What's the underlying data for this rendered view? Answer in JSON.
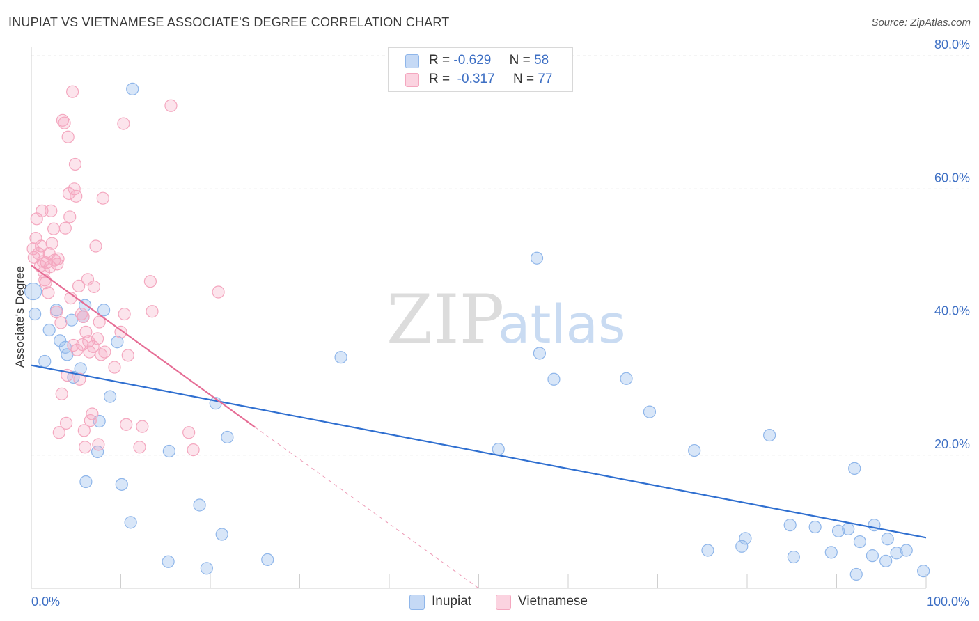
{
  "header": {
    "title": "INUPIAT VS VIETNAMESE ASSOCIATE'S DEGREE CORRELATION CHART",
    "source": "Source: ZipAtlas.com"
  },
  "watermark": {
    "zip": "ZIP",
    "atlas": "atlas"
  },
  "legend": {
    "rows": [
      {
        "r_label": "R =",
        "r_value": "-0.629",
        "n_label": "N =",
        "n_value": "58",
        "color": "#8fb6ea"
      },
      {
        "r_label": "R =",
        "r_value": "-0.317",
        "n_label": "N =",
        "n_value": "77",
        "color": "#f4a7bf"
      }
    ]
  },
  "bottom_legend": [
    {
      "label": "Inupiat",
      "color": "#8fb6ea"
    },
    {
      "label": "Vietnamese",
      "color": "#f4a7bf"
    }
  ],
  "chart_data": {
    "type": "scatter",
    "title": "INUPIAT VS VIETNAMESE ASSOCIATE'S DEGREE CORRELATION CHART",
    "ylabel": "Associate's Degree",
    "xlabel": "",
    "xlim": [
      0,
      100
    ],
    "ylim": [
      0,
      80
    ],
    "x_tick_labels": [
      "0.0%",
      "100.0%"
    ],
    "y_ticks": [
      20,
      40,
      60,
      80
    ],
    "y_tick_labels": [
      "20.0%",
      "40.0%",
      "60.0%",
      "80.0%"
    ],
    "grid": true,
    "legend_position": "top-center",
    "series": [
      {
        "name": "Inupiat",
        "color": "#8fb6ea",
        "line_color": "#2f6fd0",
        "trend": {
          "x": [
            0,
            100
          ],
          "y": [
            33.5,
            7.6
          ]
        },
        "points": [
          [
            0.4,
            41.2
          ],
          [
            1.5,
            34.1
          ],
          [
            2,
            38.8
          ],
          [
            2.8,
            41.8
          ],
          [
            3.2,
            37.2
          ],
          [
            3.8,
            36.2
          ],
          [
            4,
            35.1
          ],
          [
            4.5,
            40.3
          ],
          [
            4.7,
            31.7
          ],
          [
            5.5,
            33
          ],
          [
            5.8,
            40.8
          ],
          [
            6.1,
            16
          ],
          [
            6,
            42.5
          ],
          [
            7.4,
            20.5
          ],
          [
            7.6,
            25.1
          ],
          [
            8.1,
            41.8
          ],
          [
            8.8,
            28.8
          ],
          [
            9.6,
            37
          ],
          [
            10.1,
            15.6
          ],
          [
            11.1,
            9.9
          ],
          [
            11.3,
            75
          ],
          [
            15.3,
            4
          ],
          [
            15.4,
            20.6
          ],
          [
            18.8,
            12.5
          ],
          [
            19.6,
            3
          ],
          [
            20.6,
            27.8
          ],
          [
            21.3,
            8.1
          ],
          [
            21.9,
            22.7
          ],
          [
            26.4,
            4.3
          ],
          [
            34.6,
            34.7
          ],
          [
            52.2,
            20.9
          ],
          [
            56.5,
            49.6
          ],
          [
            56.8,
            35.3
          ],
          [
            58.4,
            31.4
          ],
          [
            66.5,
            31.5
          ],
          [
            69.1,
            26.5
          ],
          [
            74.1,
            20.7
          ],
          [
            75.6,
            5.7
          ],
          [
            79.4,
            6.3
          ],
          [
            79.8,
            7.5
          ],
          [
            82.5,
            23
          ],
          [
            84.8,
            9.5
          ],
          [
            85.2,
            4.7
          ],
          [
            87.6,
            9.2
          ],
          [
            89.4,
            5.4
          ],
          [
            90.2,
            8.6
          ],
          [
            91.3,
            8.9
          ],
          [
            92,
            18
          ],
          [
            92.2,
            2.1
          ],
          [
            92.6,
            7
          ],
          [
            94,
            4.9
          ],
          [
            94.2,
            9.5
          ],
          [
            95.5,
            4.1
          ],
          [
            95.7,
            7.4
          ],
          [
            96.7,
            5.3
          ],
          [
            97.8,
            5.7
          ],
          [
            99.7,
            2.6
          ],
          [
            0.2,
            44.6
          ]
        ]
      },
      {
        "name": "Vietnamese",
        "color": "#f4a7bf",
        "line_color": "#e66d95",
        "trend": {
          "x": [
            0,
            25
          ],
          "y": [
            48.5,
            24.2
          ]
        },
        "trend_extension": {
          "x": [
            25,
            50
          ],
          "y": [
            24.2,
            0
          ]
        },
        "points": [
          [
            0.2,
            51
          ],
          [
            0.3,
            49.7
          ],
          [
            0.5,
            52.6
          ],
          [
            0.6,
            55.5
          ],
          [
            0.8,
            50.3
          ],
          [
            1,
            48.4
          ],
          [
            1.1,
            51.4
          ],
          [
            1.2,
            56.7
          ],
          [
            1.3,
            49.1
          ],
          [
            1.5,
            46.3
          ],
          [
            1.6,
            45.9
          ],
          [
            1.7,
            48.9
          ],
          [
            1.9,
            44.4
          ],
          [
            2,
            50.3
          ],
          [
            2.1,
            48.3
          ],
          [
            2.2,
            56.7
          ],
          [
            2.3,
            51.8
          ],
          [
            2.5,
            54
          ],
          [
            2.6,
            49.3
          ],
          [
            2.8,
            41.5
          ],
          [
            2.9,
            48.7
          ],
          [
            3,
            49.5
          ],
          [
            3.1,
            23.4
          ],
          [
            3.3,
            39.9
          ],
          [
            3.4,
            29.2
          ],
          [
            3.5,
            70.3
          ],
          [
            3.7,
            69.9
          ],
          [
            3.8,
            54.1
          ],
          [
            3.9,
            24.8
          ],
          [
            4,
            32
          ],
          [
            4.1,
            67.8
          ],
          [
            4.2,
            59.3
          ],
          [
            4.3,
            55.8
          ],
          [
            4.4,
            43.6
          ],
          [
            4.6,
            74.6
          ],
          [
            4.7,
            36.5
          ],
          [
            4.8,
            60
          ],
          [
            4.9,
            63.7
          ],
          [
            5,
            58.9
          ],
          [
            5.1,
            35.8
          ],
          [
            5.3,
            45.4
          ],
          [
            5.4,
            31.4
          ],
          [
            5.6,
            41.2
          ],
          [
            5.7,
            36.6
          ],
          [
            5.8,
            40.8
          ],
          [
            5.9,
            23.7
          ],
          [
            6,
            21.2
          ],
          [
            6.1,
            38.5
          ],
          [
            6.3,
            46.4
          ],
          [
            6.4,
            37.1
          ],
          [
            6.5,
            35.5
          ],
          [
            6.6,
            25.2
          ],
          [
            6.8,
            26.2
          ],
          [
            6.9,
            36.3
          ],
          [
            7,
            45.3
          ],
          [
            7.2,
            51.4
          ],
          [
            7.4,
            37.5
          ],
          [
            7.5,
            21.6
          ],
          [
            7.6,
            40
          ],
          [
            7.8,
            35.1
          ],
          [
            8,
            58.6
          ],
          [
            8.2,
            35.5
          ],
          [
            9.3,
            33.2
          ],
          [
            10,
            38.5
          ],
          [
            10.3,
            69.8
          ],
          [
            10.4,
            41.2
          ],
          [
            10.6,
            24.6
          ],
          [
            10.8,
            35
          ],
          [
            12.1,
            21.2
          ],
          [
            12.4,
            24.3
          ],
          [
            13.3,
            46.1
          ],
          [
            13.5,
            41.6
          ],
          [
            15.6,
            72.5
          ],
          [
            17.6,
            23.4
          ],
          [
            18.1,
            20.8
          ],
          [
            20.9,
            44.5
          ],
          [
            1.4,
            47.5
          ]
        ]
      }
    ]
  }
}
